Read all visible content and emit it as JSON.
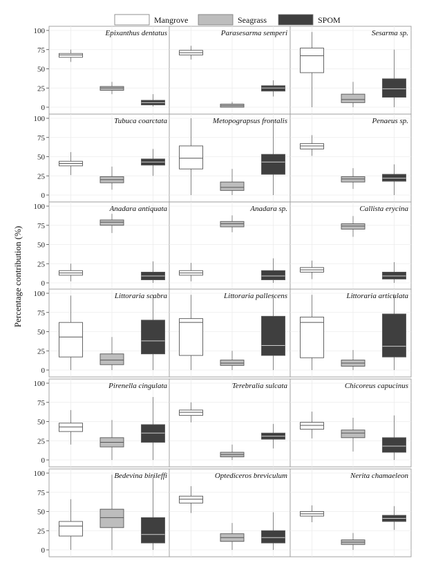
{
  "chart_data": {
    "type": "box",
    "ylabel": "Percentage contribution (%)",
    "ylim": [
      0,
      100
    ],
    "yticks": [
      0,
      25,
      50,
      75,
      100
    ],
    "legend_placement": "top-center",
    "grid": true,
    "series": [
      {
        "name": "Mangrove",
        "color": "#ffffff"
      },
      {
        "name": "Seagrass",
        "color": "#bdbdbd"
      },
      {
        "name": "SPOM",
        "color": "#3f3f3f"
      }
    ],
    "panels": [
      {
        "title": "Epixanthus dentatus",
        "boxes": [
          {
            "min": 59,
            "q1": 65,
            "median": 68,
            "q3": 70,
            "max": 75
          },
          {
            "min": 17,
            "q1": 22,
            "median": 25,
            "q3": 27,
            "max": 33
          },
          {
            "min": 1,
            "q1": 3,
            "median": 6,
            "q3": 9,
            "max": 17
          }
        ]
      },
      {
        "title": "Parasesarma semperi",
        "boxes": [
          {
            "min": 62,
            "q1": 68,
            "median": 71,
            "q3": 74,
            "max": 80
          },
          {
            "min": 0,
            "q1": 0,
            "median": 2,
            "q3": 4,
            "max": 7
          },
          {
            "min": 14,
            "q1": 21,
            "median": 25,
            "q3": 28,
            "max": 35
          }
        ]
      },
      {
        "title": "Sesarma sp.",
        "boxes": [
          {
            "min": 0,
            "q1": 45,
            "median": 67,
            "q3": 77,
            "max": 98
          },
          {
            "min": 0,
            "q1": 6,
            "median": 10,
            "q3": 17,
            "max": 33
          },
          {
            "min": 0,
            "q1": 13,
            "median": 24,
            "q3": 37,
            "max": 75
          }
        ]
      },
      {
        "title": "Tubuca coarctata",
        "boxes": [
          {
            "min": 26,
            "q1": 38,
            "median": 41,
            "q3": 44,
            "max": 56
          },
          {
            "min": 7,
            "q1": 16,
            "median": 20,
            "q3": 24,
            "max": 37
          },
          {
            "min": 25,
            "q1": 39,
            "median": 43,
            "q3": 47,
            "max": 60
          }
        ]
      },
      {
        "title": "Metopograpsus frontalis",
        "boxes": [
          {
            "min": 0,
            "q1": 34,
            "median": 48,
            "q3": 64,
            "max": 100
          },
          {
            "min": 0,
            "q1": 6,
            "median": 10,
            "q3": 17,
            "max": 34
          },
          {
            "min": 0,
            "q1": 27,
            "median": 43,
            "q3": 53,
            "max": 94
          }
        ]
      },
      {
        "title": "Penaeus sp.",
        "boxes": [
          {
            "min": 51,
            "q1": 60,
            "median": 64,
            "q3": 67,
            "max": 78
          },
          {
            "min": 8,
            "q1": 17,
            "median": 21,
            "q3": 24,
            "max": 35
          },
          {
            "min": 0,
            "q1": 18,
            "median": 22,
            "q3": 27,
            "max": 40
          }
        ]
      },
      {
        "title": "Anadara antiquata",
        "boxes": [
          {
            "min": 2,
            "q1": 10,
            "median": 13,
            "q3": 16,
            "max": 25
          },
          {
            "min": 65,
            "q1": 75,
            "median": 79,
            "q3": 82,
            "max": 90
          },
          {
            "min": 0,
            "q1": 4,
            "median": 9,
            "q3": 14,
            "max": 28
          }
        ]
      },
      {
        "title": "Anadara sp.",
        "boxes": [
          {
            "min": 2,
            "q1": 10,
            "median": 13,
            "q3": 16,
            "max": 26
          },
          {
            "min": 66,
            "q1": 73,
            "median": 77,
            "q3": 80,
            "max": 88
          },
          {
            "min": 0,
            "q1": 4,
            "median": 9,
            "q3": 16,
            "max": 32
          }
        ]
      },
      {
        "title": "Callista erycina",
        "boxes": [
          {
            "min": 5,
            "q1": 14,
            "median": 17,
            "q3": 20,
            "max": 29
          },
          {
            "min": 60,
            "q1": 70,
            "median": 74,
            "q3": 77,
            "max": 87
          },
          {
            "min": 0,
            "q1": 5,
            "median": 9,
            "q3": 14,
            "max": 27
          }
        ]
      },
      {
        "title": "Littoraria scabra",
        "boxes": [
          {
            "min": 0,
            "q1": 17,
            "median": 43,
            "q3": 62,
            "max": 97
          },
          {
            "min": 0,
            "q1": 7,
            "median": 13,
            "q3": 21,
            "max": 43
          },
          {
            "min": 0,
            "q1": 21,
            "median": 38,
            "q3": 65,
            "max": 98
          }
        ]
      },
      {
        "title": "Littoraria pallescens",
        "boxes": [
          {
            "min": 0,
            "q1": 19,
            "median": 62,
            "q3": 67,
            "max": 98
          },
          {
            "min": 0,
            "q1": 6,
            "median": 9,
            "q3": 13,
            "max": 25
          },
          {
            "min": 0,
            "q1": 19,
            "median": 32,
            "q3": 70,
            "max": 99
          }
        ]
      },
      {
        "title": "Littoraria articulata",
        "boxes": [
          {
            "min": 0,
            "q1": 16,
            "median": 62,
            "q3": 69,
            "max": 98
          },
          {
            "min": 0,
            "q1": 5,
            "median": 9,
            "q3": 13,
            "max": 26
          },
          {
            "min": 0,
            "q1": 17,
            "median": 31,
            "q3": 73,
            "max": 99
          }
        ]
      },
      {
        "title": "Pirenella cingulata",
        "boxes": [
          {
            "min": 20,
            "q1": 37,
            "median": 43,
            "q3": 48,
            "max": 65
          },
          {
            "min": 0,
            "q1": 17,
            "median": 23,
            "q3": 29,
            "max": 52
          },
          {
            "min": 0,
            "q1": 23,
            "median": 35,
            "q3": 46,
            "max": 82
          }
        ]
      },
      {
        "title": "Terebralia sulcata",
        "boxes": [
          {
            "min": 49,
            "q1": 58,
            "median": 62,
            "q3": 65,
            "max": 75
          },
          {
            "min": 0,
            "q1": 4,
            "median": 7,
            "q3": 10,
            "max": 20
          },
          {
            "min": 15,
            "q1": 27,
            "median": 31,
            "q3": 35,
            "max": 47
          }
        ]
      },
      {
        "title": "Chicoreus capucinus",
        "boxes": [
          {
            "min": 28,
            "q1": 40,
            "median": 45,
            "q3": 49,
            "max": 63
          },
          {
            "min": 11,
            "q1": 29,
            "median": 35,
            "q3": 39,
            "max": 55
          },
          {
            "min": 0,
            "q1": 10,
            "median": 18,
            "q3": 29,
            "max": 58
          }
        ]
      },
      {
        "title": "Bedevina birileffi",
        "boxes": [
          {
            "min": 0,
            "q1": 18,
            "median": 31,
            "q3": 37,
            "max": 66
          },
          {
            "min": 0,
            "q1": 29,
            "median": 42,
            "q3": 53,
            "max": 98
          },
          {
            "min": 0,
            "q1": 9,
            "median": 20,
            "q3": 42,
            "max": 97
          }
        ]
      },
      {
        "title": "Optediceros breviculum",
        "boxes": [
          {
            "min": 48,
            "q1": 61,
            "median": 66,
            "q3": 70,
            "max": 83
          },
          {
            "min": 0,
            "q1": 11,
            "median": 16,
            "q3": 21,
            "max": 35
          },
          {
            "min": 0,
            "q1": 9,
            "median": 16,
            "q3": 25,
            "max": 49
          }
        ]
      },
      {
        "title": "Nerita chamaeleon",
        "boxes": [
          {
            "min": 36,
            "q1": 44,
            "median": 47,
            "q3": 50,
            "max": 58
          },
          {
            "min": 0,
            "q1": 7,
            "median": 10,
            "q3": 13,
            "max": 22
          },
          {
            "min": 26,
            "q1": 37,
            "median": 41,
            "q3": 45,
            "max": 57
          }
        ]
      }
    ]
  }
}
